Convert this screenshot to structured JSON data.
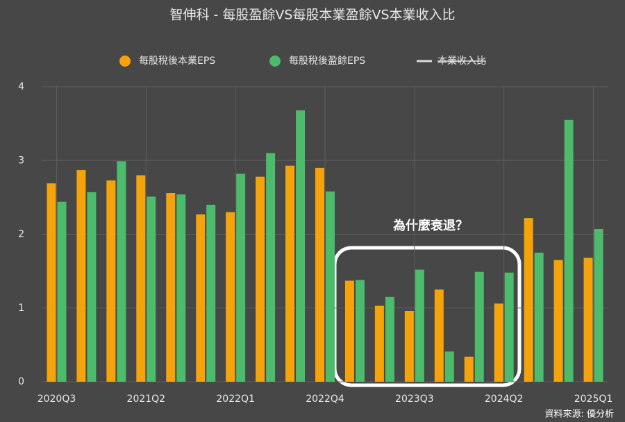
{
  "chart_data": {
    "type": "bar",
    "title": "智伸科 - 每股盈餘VS每股本業盈餘VS本業收入比",
    "categories": [
      "2020Q3",
      null,
      null,
      "2021Q2",
      null,
      null,
      "2022Q1",
      null,
      null,
      "2022Q4",
      null,
      null,
      "2023Q3",
      null,
      null,
      "2024Q2",
      null,
      null,
      "2025Q1"
    ],
    "series": [
      {
        "name": "每股稅後本業EPS",
        "color": "#f5a30a",
        "values": [
          2.69,
          2.87,
          2.73,
          2.8,
          2.56,
          2.27,
          2.3,
          2.78,
          2.93,
          2.9,
          1.37,
          1.03,
          0.96,
          1.25,
          0.34,
          1.06,
          2.22,
          1.65,
          1.68
        ]
      },
      {
        "name": "每股稅後盈餘EPS",
        "color": "#4cbb6c",
        "values": [
          2.44,
          2.57,
          2.99,
          2.51,
          2.54,
          2.4,
          2.82,
          3.1,
          3.68,
          2.58,
          1.38,
          1.15,
          1.52,
          0.41,
          1.49,
          1.48,
          1.75,
          3.55,
          2.07
        ]
      },
      {
        "name": "本業收入比",
        "color": "#dddddd",
        "hidden": true
      }
    ],
    "ylim": [
      0,
      4
    ],
    "yticks": [
      0,
      1,
      2,
      3,
      4
    ],
    "grid": true,
    "legend": "top",
    "annotation": "為什麼衰退？",
    "source": "資料來源: 優分析"
  }
}
